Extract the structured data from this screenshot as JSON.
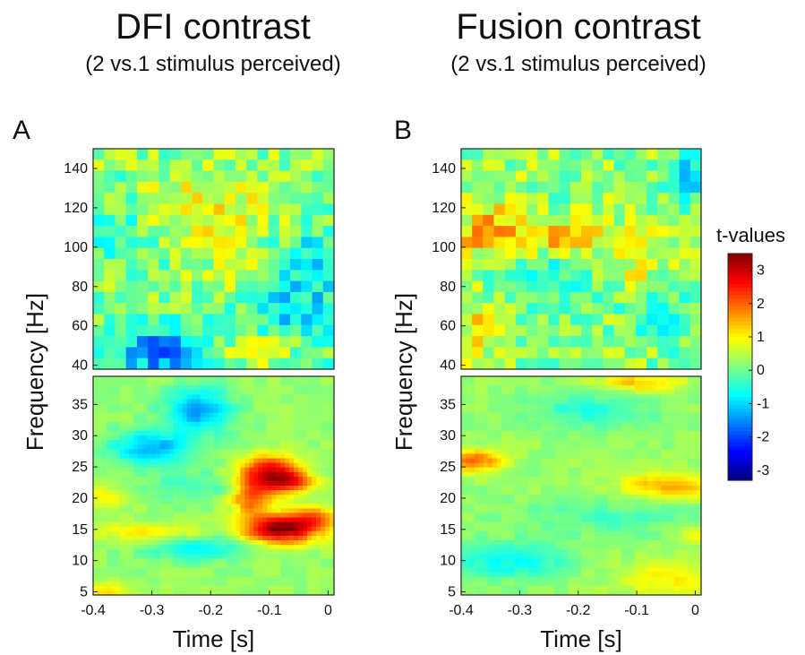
{
  "colormap": "jet",
  "chart_data": [
    {
      "type": "heatmap",
      "panel": "A",
      "title": "DFI contrast",
      "subtitle": "(2 vs.1 stimulus perceived)",
      "xlabel": "Time [s]",
      "ylabel": "Frequency [Hz]",
      "xlim": [
        -0.4,
        0.01
      ],
      "x_ticks": [
        "-0.4",
        "-0.3",
        "-0.2",
        "-0.1",
        "0"
      ],
      "x_tick_values": [
        -0.4,
        -0.3,
        -0.2,
        -0.1,
        0
      ],
      "upper": {
        "ylim": [
          38,
          150
        ],
        "y_ticks": [
          "40",
          "60",
          "80",
          "100",
          "120",
          "140"
        ],
        "y_tick_values": [
          40,
          60,
          80,
          100,
          120,
          140
        ],
        "blobs": [
          {
            "t": -0.3,
            "f": 48,
            "amp": -1.6,
            "st": 0.06,
            "sf": 10
          },
          {
            "t": -0.27,
            "f": 44,
            "amp": -0.8,
            "st": 0.02,
            "sf": 4
          },
          {
            "t": -0.05,
            "f": 68,
            "amp": -1.1,
            "st": 0.07,
            "sf": 20
          },
          {
            "t": -0.03,
            "f": 100,
            "amp": -0.6,
            "st": 0.03,
            "sf": 10
          },
          {
            "t": -0.22,
            "f": 120,
            "amp": 0.9,
            "st": 0.08,
            "sf": 12
          },
          {
            "t": -0.1,
            "f": 48,
            "amp": 1.0,
            "st": 0.05,
            "sf": 6
          },
          {
            "t": -0.35,
            "f": 110,
            "amp": -0.7,
            "st": 0.05,
            "sf": 15
          },
          {
            "t": -0.15,
            "f": 90,
            "amp": 0.5,
            "st": 0.05,
            "sf": 10
          }
        ]
      },
      "lower": {
        "ylim": [
          4.5,
          39.5
        ],
        "y_ticks": [
          "5",
          "10",
          "15",
          "20",
          "25",
          "30",
          "35"
        ],
        "y_tick_values": [
          5,
          10,
          15,
          20,
          25,
          30,
          35
        ],
        "blobs": [
          {
            "t": -0.1,
            "f": 24,
            "amp": 2.6,
            "st": 0.035,
            "sf": 2.0
          },
          {
            "t": -0.06,
            "f": 22.5,
            "amp": 1.6,
            "st": 0.03,
            "sf": 1.2
          },
          {
            "t": -0.08,
            "f": 15,
            "amp": 3.2,
            "st": 0.045,
            "sf": 1.6
          },
          {
            "t": -0.13,
            "f": 20,
            "amp": 1.8,
            "st": 0.025,
            "sf": 2.0
          },
          {
            "t": -0.02,
            "f": 17,
            "amp": 1.4,
            "st": 0.03,
            "sf": 1.2
          },
          {
            "t": -0.22,
            "f": 34,
            "amp": -1.6,
            "st": 0.04,
            "sf": 2.5
          },
          {
            "t": -0.3,
            "f": 28,
            "amp": -1.5,
            "st": 0.05,
            "sf": 2.0
          },
          {
            "t": -0.22,
            "f": 12,
            "amp": -1.0,
            "st": 0.06,
            "sf": 1.5
          },
          {
            "t": -0.3,
            "f": 14.5,
            "amp": 1.0,
            "st": 0.06,
            "sf": 1.0
          },
          {
            "t": -0.38,
            "f": 5,
            "amp": 1.0,
            "st": 0.03,
            "sf": 1.0
          },
          {
            "t": -0.38,
            "f": 20,
            "amp": 0.8,
            "st": 0.03,
            "sf": 1.2
          },
          {
            "t": -0.22,
            "f": 22,
            "amp": -0.6,
            "st": 0.06,
            "sf": 1.5
          }
        ]
      }
    },
    {
      "type": "heatmap",
      "panel": "B",
      "title": "Fusion contrast",
      "subtitle": "(2 vs.1 stimulus perceived)",
      "xlabel": "Time [s]",
      "ylabel": "Frequency [Hz]",
      "xlim": [
        -0.4,
        0.01
      ],
      "x_ticks": [
        "-0.4",
        "-0.3",
        "-0.2",
        "-0.1",
        "0"
      ],
      "x_tick_values": [
        -0.4,
        -0.3,
        -0.2,
        -0.1,
        0
      ],
      "upper": {
        "ylim": [
          38,
          150
        ],
        "y_ticks": [
          "40",
          "60",
          "80",
          "100",
          "120",
          "140"
        ],
        "y_tick_values": [
          40,
          60,
          80,
          100,
          120,
          140
        ],
        "blobs": [
          {
            "t": -0.25,
            "f": 104,
            "amp": 1.2,
            "st": 0.12,
            "sf": 7
          },
          {
            "t": -0.35,
            "f": 115,
            "amp": 0.8,
            "st": 0.04,
            "sf": 10
          },
          {
            "t": -0.37,
            "f": 60,
            "amp": 0.8,
            "st": 0.04,
            "sf": 10
          },
          {
            "t": -0.25,
            "f": 85,
            "amp": -0.7,
            "st": 0.06,
            "sf": 12
          },
          {
            "t": -0.01,
            "f": 135,
            "amp": -1.2,
            "st": 0.02,
            "sf": 8
          },
          {
            "t": -0.05,
            "f": 65,
            "amp": -0.6,
            "st": 0.05,
            "sf": 10
          },
          {
            "t": -0.1,
            "f": 92,
            "amp": 0.6,
            "st": 0.03,
            "sf": 8
          }
        ]
      },
      "lower": {
        "ylim": [
          4.5,
          39.5
        ],
        "y_ticks": [
          "5",
          "10",
          "15",
          "20",
          "25",
          "30",
          "35"
        ],
        "y_tick_values": [
          5,
          10,
          15,
          20,
          25,
          30,
          35
        ],
        "blobs": [
          {
            "t": -0.38,
            "f": 26,
            "amp": 1.8,
            "st": 0.035,
            "sf": 1.2
          },
          {
            "t": -0.04,
            "f": 22,
            "amp": 1.3,
            "st": 0.06,
            "sf": 1.5
          },
          {
            "t": -0.1,
            "f": 38.5,
            "amp": 1.1,
            "st": 0.05,
            "sf": 1.0
          },
          {
            "t": -0.32,
            "f": 10,
            "amp": -1.0,
            "st": 0.07,
            "sf": 2.0
          },
          {
            "t": -0.18,
            "f": 34,
            "amp": -0.7,
            "st": 0.08,
            "sf": 2.0
          },
          {
            "t": -0.05,
            "f": 7,
            "amp": 0.8,
            "st": 0.06,
            "sf": 2.0
          },
          {
            "t": -0.15,
            "f": 17,
            "amp": -0.5,
            "st": 0.1,
            "sf": 2.0
          },
          {
            "t": 0.0,
            "f": 14,
            "amp": 0.9,
            "st": 0.02,
            "sf": 1.0
          }
        ]
      }
    }
  ],
  "colorbar": {
    "title": "t-values",
    "range": [
      -3.3,
      3.5
    ],
    "ticks": [
      "3",
      "2",
      "1",
      "0",
      "-1",
      "-2",
      "-3"
    ],
    "tick_values": [
      3,
      2,
      1,
      0,
      -1,
      -2,
      -3
    ]
  }
}
